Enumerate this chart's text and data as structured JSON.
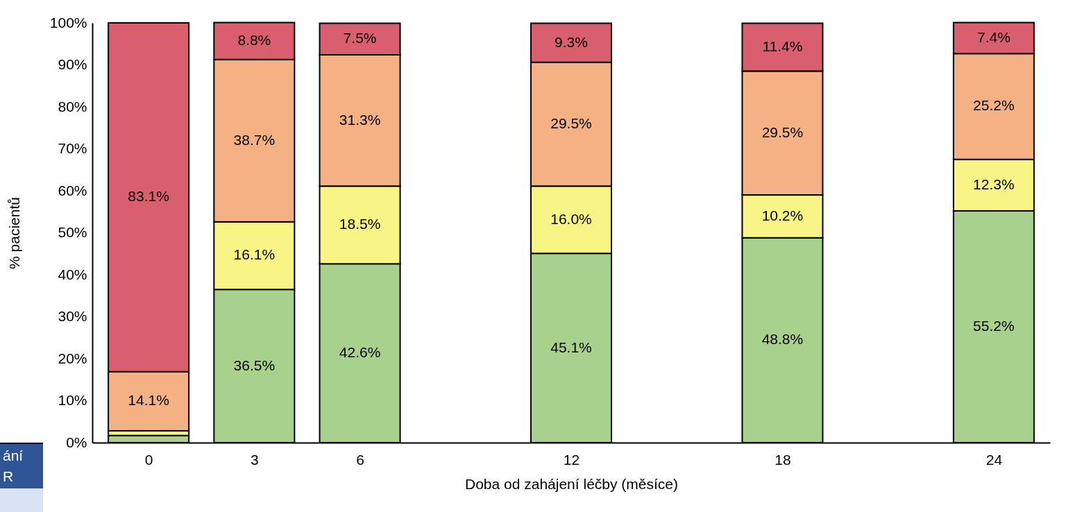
{
  "chart_data": {
    "type": "bar",
    "stacked": true,
    "x": [
      0,
      3,
      6,
      12,
      18,
      24
    ],
    "xlim": [
      -1.5,
      25.5
    ],
    "xticks": [
      0,
      3,
      6,
      12,
      18,
      24
    ],
    "xlabel": "Doba od zahájení léčby (měsíce)",
    "ylabel": "% pacientů",
    "ylim": [
      0,
      100
    ],
    "yticks": [
      {
        "value": 0,
        "label": "0%"
      },
      {
        "value": 10,
        "label": "10%"
      },
      {
        "value": 20,
        "label": "20%"
      },
      {
        "value": 30,
        "label": "30%"
      },
      {
        "value": 40,
        "label": "40%"
      },
      {
        "value": 50,
        "label": "50%"
      },
      {
        "value": 60,
        "label": "60%"
      },
      {
        "value": 70,
        "label": "70%"
      },
      {
        "value": 80,
        "label": "80%"
      },
      {
        "value": 90,
        "label": "90%"
      },
      {
        "value": 100,
        "label": "100%"
      }
    ],
    "grid": false,
    "legend": false,
    "series": [
      {
        "color": "#a9d18e",
        "values": [
          1.7,
          36.5,
          42.6,
          45.1,
          48.8,
          55.2
        ],
        "value_labels": [
          null,
          "36.5%",
          "42.6%",
          "45.1%",
          "48.8%",
          "55.2%"
        ]
      },
      {
        "color": "#f8f485",
        "values": [
          1.1,
          16.1,
          18.5,
          16.0,
          10.2,
          12.3
        ],
        "value_labels": [
          null,
          "16.1%",
          "18.5%",
          "16.0%",
          "10.2%",
          "12.3%"
        ]
      },
      {
        "color": "#f4b183",
        "values": [
          14.1,
          38.7,
          31.3,
          29.5,
          29.5,
          25.2
        ],
        "value_labels": [
          "14.1%",
          "38.7%",
          "31.3%",
          "29.5%",
          "29.5%",
          "25.2%"
        ]
      },
      {
        "color": "#d95f6e",
        "values": [
          83.1,
          8.8,
          7.5,
          9.3,
          11.4,
          7.4
        ],
        "value_labels": [
          "83.1%",
          "8.8%",
          "7.5%",
          "9.3%",
          "11.4%",
          "7.4%"
        ]
      }
    ],
    "annotations": [
      "ání",
      "R"
    ]
  }
}
